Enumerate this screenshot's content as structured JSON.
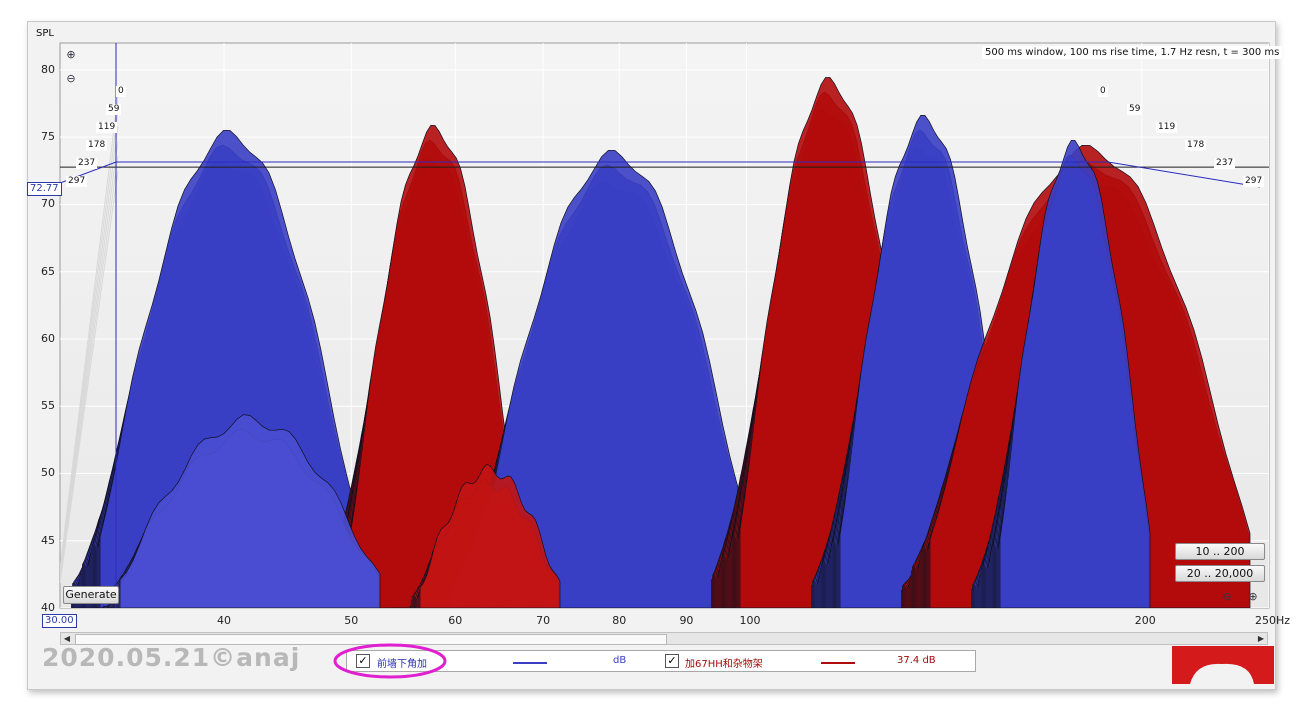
{
  "chart_data": {
    "type": "waterfall",
    "yaxis_label": "SPL",
    "y_ticks": [
      "80",
      "75",
      "70",
      "65",
      "60",
      "55",
      "50",
      "45",
      "40"
    ],
    "ylim": [
      40,
      82
    ],
    "cursor_value": "72.77",
    "x_ticks": [
      "40",
      "50",
      "60",
      "70",
      "80",
      "90",
      "100",
      "200",
      "250Hz"
    ],
    "x_start": "30.00",
    "xlim": [
      30,
      250
    ],
    "time_ticks": [
      "0",
      "59",
      "119",
      "178",
      "237",
      "297"
    ],
    "info": "500 ms window, 100 ms rise time,  1.7 Hz resn, t = 300 ms",
    "series": [
      {
        "name": "前墙下角加",
        "color": "#3a3fc4"
      },
      {
        "name": "加67HH和杂物架",
        "color": "#b20b0b"
      }
    ]
  },
  "buttons": {
    "generate": "Generate",
    "range_small": "10 .. 200",
    "range_large": "20 .. 20,000"
  },
  "legend": {
    "item1_check": "✓",
    "item1_name": "前墙下角加",
    "item1_value": "dB",
    "item2_check": "✓",
    "item2_name": "加67HH和杂物架",
    "item2_value": "37.4 dB"
  },
  "watermark": "2020.05.21©anaj",
  "colors": {
    "blue": "#3a3fc4",
    "red": "#b20b0b",
    "highlight": "#e020d0"
  }
}
